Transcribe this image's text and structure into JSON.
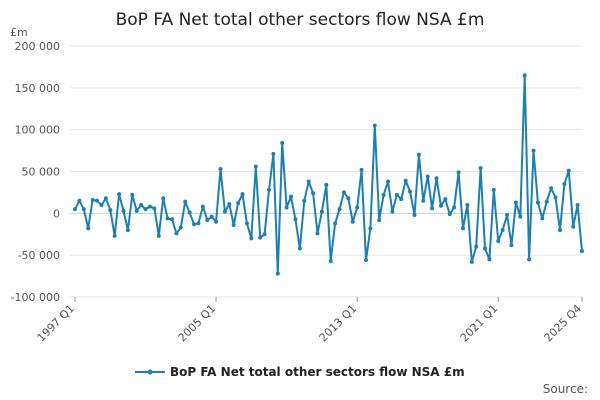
{
  "chart_data": {
    "type": "line",
    "title": "BoP FA Net total other sectors flow NSA £m",
    "unit_label": "£m",
    "ylim": [
      -100000,
      200000
    ],
    "yticks": [
      -100000,
      -50000,
      0,
      50000,
      100000,
      150000,
      200000
    ],
    "ytick_labels": [
      "-100 000",
      "-50 000",
      "0",
      "50 000",
      "100 000",
      "150 000",
      "200 000"
    ],
    "xtick_labels": [
      "1997 Q1",
      "2005 Q1",
      "2013 Q1",
      "2021 Q1",
      "2025 Q4"
    ],
    "xtick_positions": [
      0,
      32,
      64,
      96,
      115
    ],
    "grid": true,
    "legend_position": "bottom",
    "source_label": "Source:",
    "series": [
      {
        "name": "BoP FA Net total other sectors flow NSA £m",
        "color": "#1b7fb8",
        "x_start": "1997 Q1",
        "values": [
          5000,
          15000,
          5000,
          -18000,
          16000,
          15000,
          10000,
          18000,
          4000,
          -27000,
          23000,
          3000,
          -20000,
          22000,
          3000,
          10000,
          5000,
          8000,
          6000,
          -27000,
          18000,
          -6000,
          -7000,
          -24000,
          -17000,
          14000,
          1000,
          -13000,
          -12000,
          8000,
          -8000,
          -4000,
          -10000,
          53000,
          2000,
          11000,
          -14000,
          12000,
          23000,
          -12000,
          -30000,
          56000,
          -29000,
          -25000,
          28000,
          71000,
          -72000,
          84000,
          7000,
          20000,
          -7000,
          -42000,
          15000,
          38000,
          24000,
          -24000,
          2000,
          34000,
          -57000,
          -12000,
          5000,
          25000,
          18000,
          -10000,
          7000,
          52000,
          -56000,
          -18000,
          105000,
          -8000,
          22000,
          38000,
          2000,
          22000,
          17000,
          39000,
          26000,
          -2000,
          70000,
          15000,
          44000,
          6000,
          42000,
          9000,
          17000,
          -1000,
          7000,
          49000,
          -18000,
          10000,
          -58000,
          -40000,
          54000,
          -42000,
          -55000,
          28000,
          -33000,
          -20000,
          -2000,
          -38000,
          13000,
          -4000,
          165000,
          -55000,
          75000,
          13000,
          -6000,
          14000,
          30000,
          19000,
          -20000,
          35000,
          51000,
          -16000,
          10000,
          -45000
        ]
      }
    ]
  }
}
